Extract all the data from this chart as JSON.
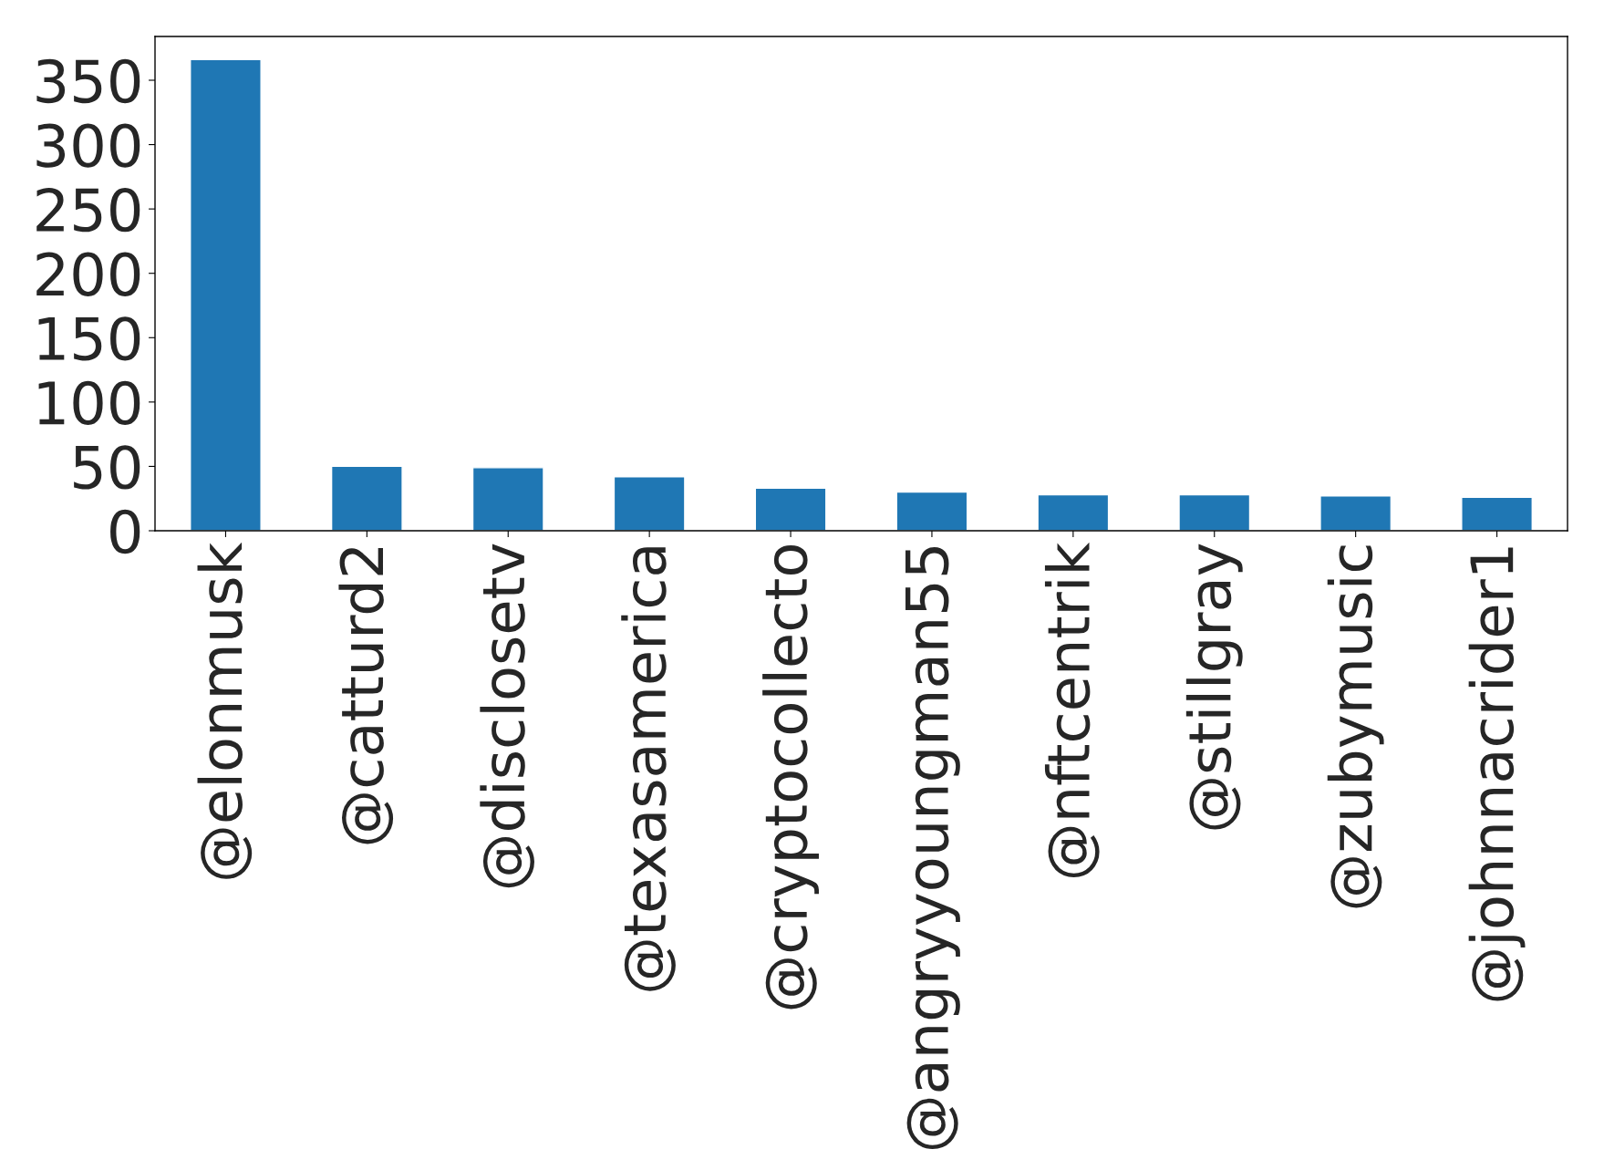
{
  "chart_data": {
    "type": "bar",
    "categories": [
      "@elonmusk",
      "@catturd2",
      "@disclosetv",
      "@texasamerica",
      "@cryptocollecto",
      "@angryyoungman55",
      "@nftcentrik",
      "@stillgray",
      "@zubymusic",
      "@johnnacrider1"
    ],
    "values": [
      366,
      50,
      49,
      42,
      33,
      30,
      28,
      28,
      27,
      26
    ],
    "color": "#1f77b4",
    "ylim": [
      0,
      384
    ],
    "yticks": [
      0,
      50,
      100,
      150,
      200,
      250,
      300,
      350
    ],
    "grid": false,
    "legend": false
  }
}
